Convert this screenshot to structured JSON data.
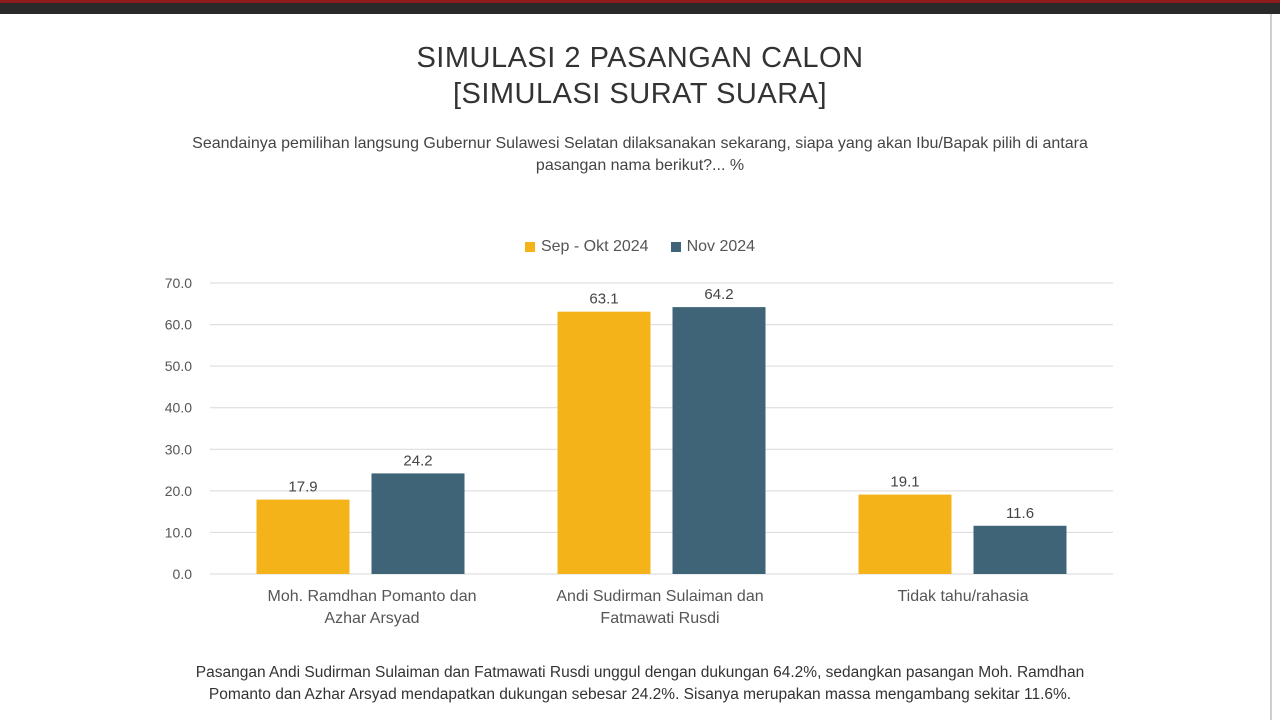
{
  "title_line1": "SIMULASI 2 PASANGAN CALON",
  "title_line2": "[SIMULASI SURAT SUARA]",
  "question_line1": "Seandainya pemilihan langsung Gubernur Sulawesi Selatan dilaksanakan sekarang, siapa yang akan Ibu/Bapak pilih di antara",
  "question_line2": "pasangan nama berikut?... %",
  "footnote_line1": "Pasangan Andi Sudirman Sulaiman dan Fatmawati Rusdi unggul dengan dukungan 64.2%, sedangkan pasangan Moh. Ramdhan",
  "footnote_line2": "Pomanto dan Azhar Arsyad mendapatkan dukungan sebesar 24.2%. Sisanya merupakan massa mengambang sekitar 11.6%.",
  "category_labels": [
    {
      "line1": "Moh. Ramdhan Pomanto dan",
      "line2": "Azhar Arsyad"
    },
    {
      "line1": "Andi Sudirman Sulaiman dan",
      "line2": "Fatmawati Rusdi"
    },
    {
      "line1": "Tidak tahu/rahasia",
      "line2": ""
    }
  ],
  "colors": {
    "series1": "#F5B31A",
    "series2": "#3F6478",
    "grid": "#d9d9d9"
  },
  "chart_data": {
    "type": "bar",
    "categories": [
      "Moh. Ramdhan Pomanto dan Azhar Arsyad",
      "Andi Sudirman Sulaiman dan Fatmawati Rusdi",
      "Tidak tahu/rahasia"
    ],
    "series": [
      {
        "name": "Sep - Okt 2024",
        "values": [
          17.9,
          63.1,
          19.1
        ]
      },
      {
        "name": "Nov 2024",
        "values": [
          24.2,
          64.2,
          11.6
        ]
      }
    ],
    "y_ticks": [
      "0.0",
      "10.0",
      "20.0",
      "30.0",
      "40.0",
      "50.0",
      "60.0",
      "70.0"
    ],
    "ylim": [
      0,
      70
    ],
    "grid": true,
    "legend_position": "top"
  }
}
